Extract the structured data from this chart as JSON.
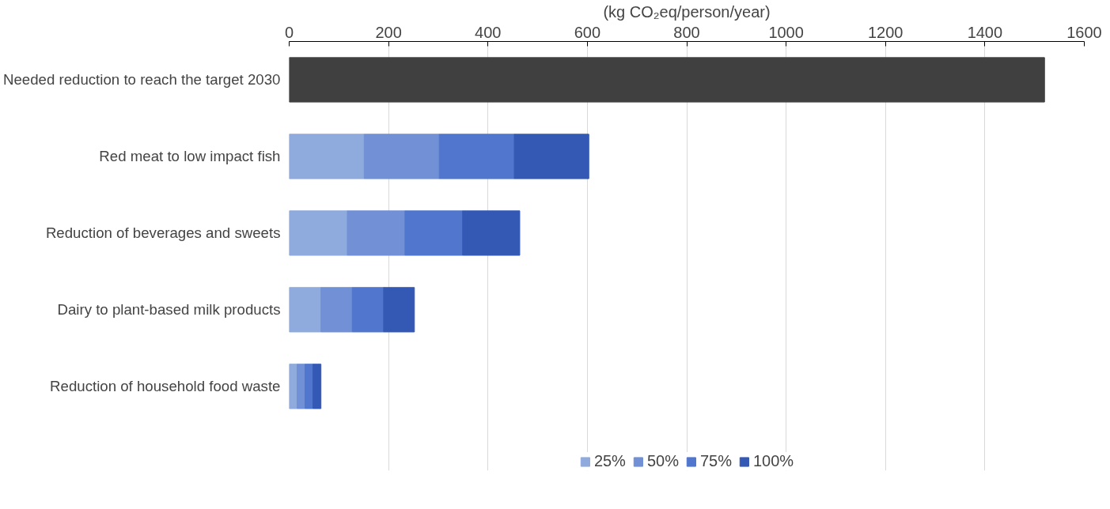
{
  "chart_data": {
    "type": "bar",
    "orientation": "horizontal",
    "stacked": true,
    "xlabel": "(kg CO₂eq/person/year)",
    "categories": [
      "Needed reduction to reach the target 2030",
      "Red meat to low impact fish",
      "Reduction of beverages and sweets",
      "Dairy to plant-based milk products",
      "Reduction of household food waste"
    ],
    "series": [
      {
        "color": "#404040",
        "values": [
          1520,
          null,
          null,
          null,
          null
        ]
      },
      {
        "name": "25%",
        "color": "#8faadc",
        "values": [
          null,
          151,
          117,
          64,
          16
        ]
      },
      {
        "name": "50%",
        "color": "#7190d6",
        "values": [
          null,
          151,
          116,
          63,
          16
        ]
      },
      {
        "name": "75%",
        "color": "#5077cd",
        "values": [
          null,
          151,
          116,
          63,
          16
        ]
      },
      {
        "name": "100%",
        "color": "#3459b5",
        "values": [
          null,
          150,
          115,
          62,
          16
        ]
      }
    ],
    "xlim": [
      0,
      1600
    ],
    "xticks": [
      0,
      200,
      400,
      600,
      800,
      1000,
      1200,
      1400,
      1600
    ],
    "grid": "x",
    "legend": "bottom"
  }
}
